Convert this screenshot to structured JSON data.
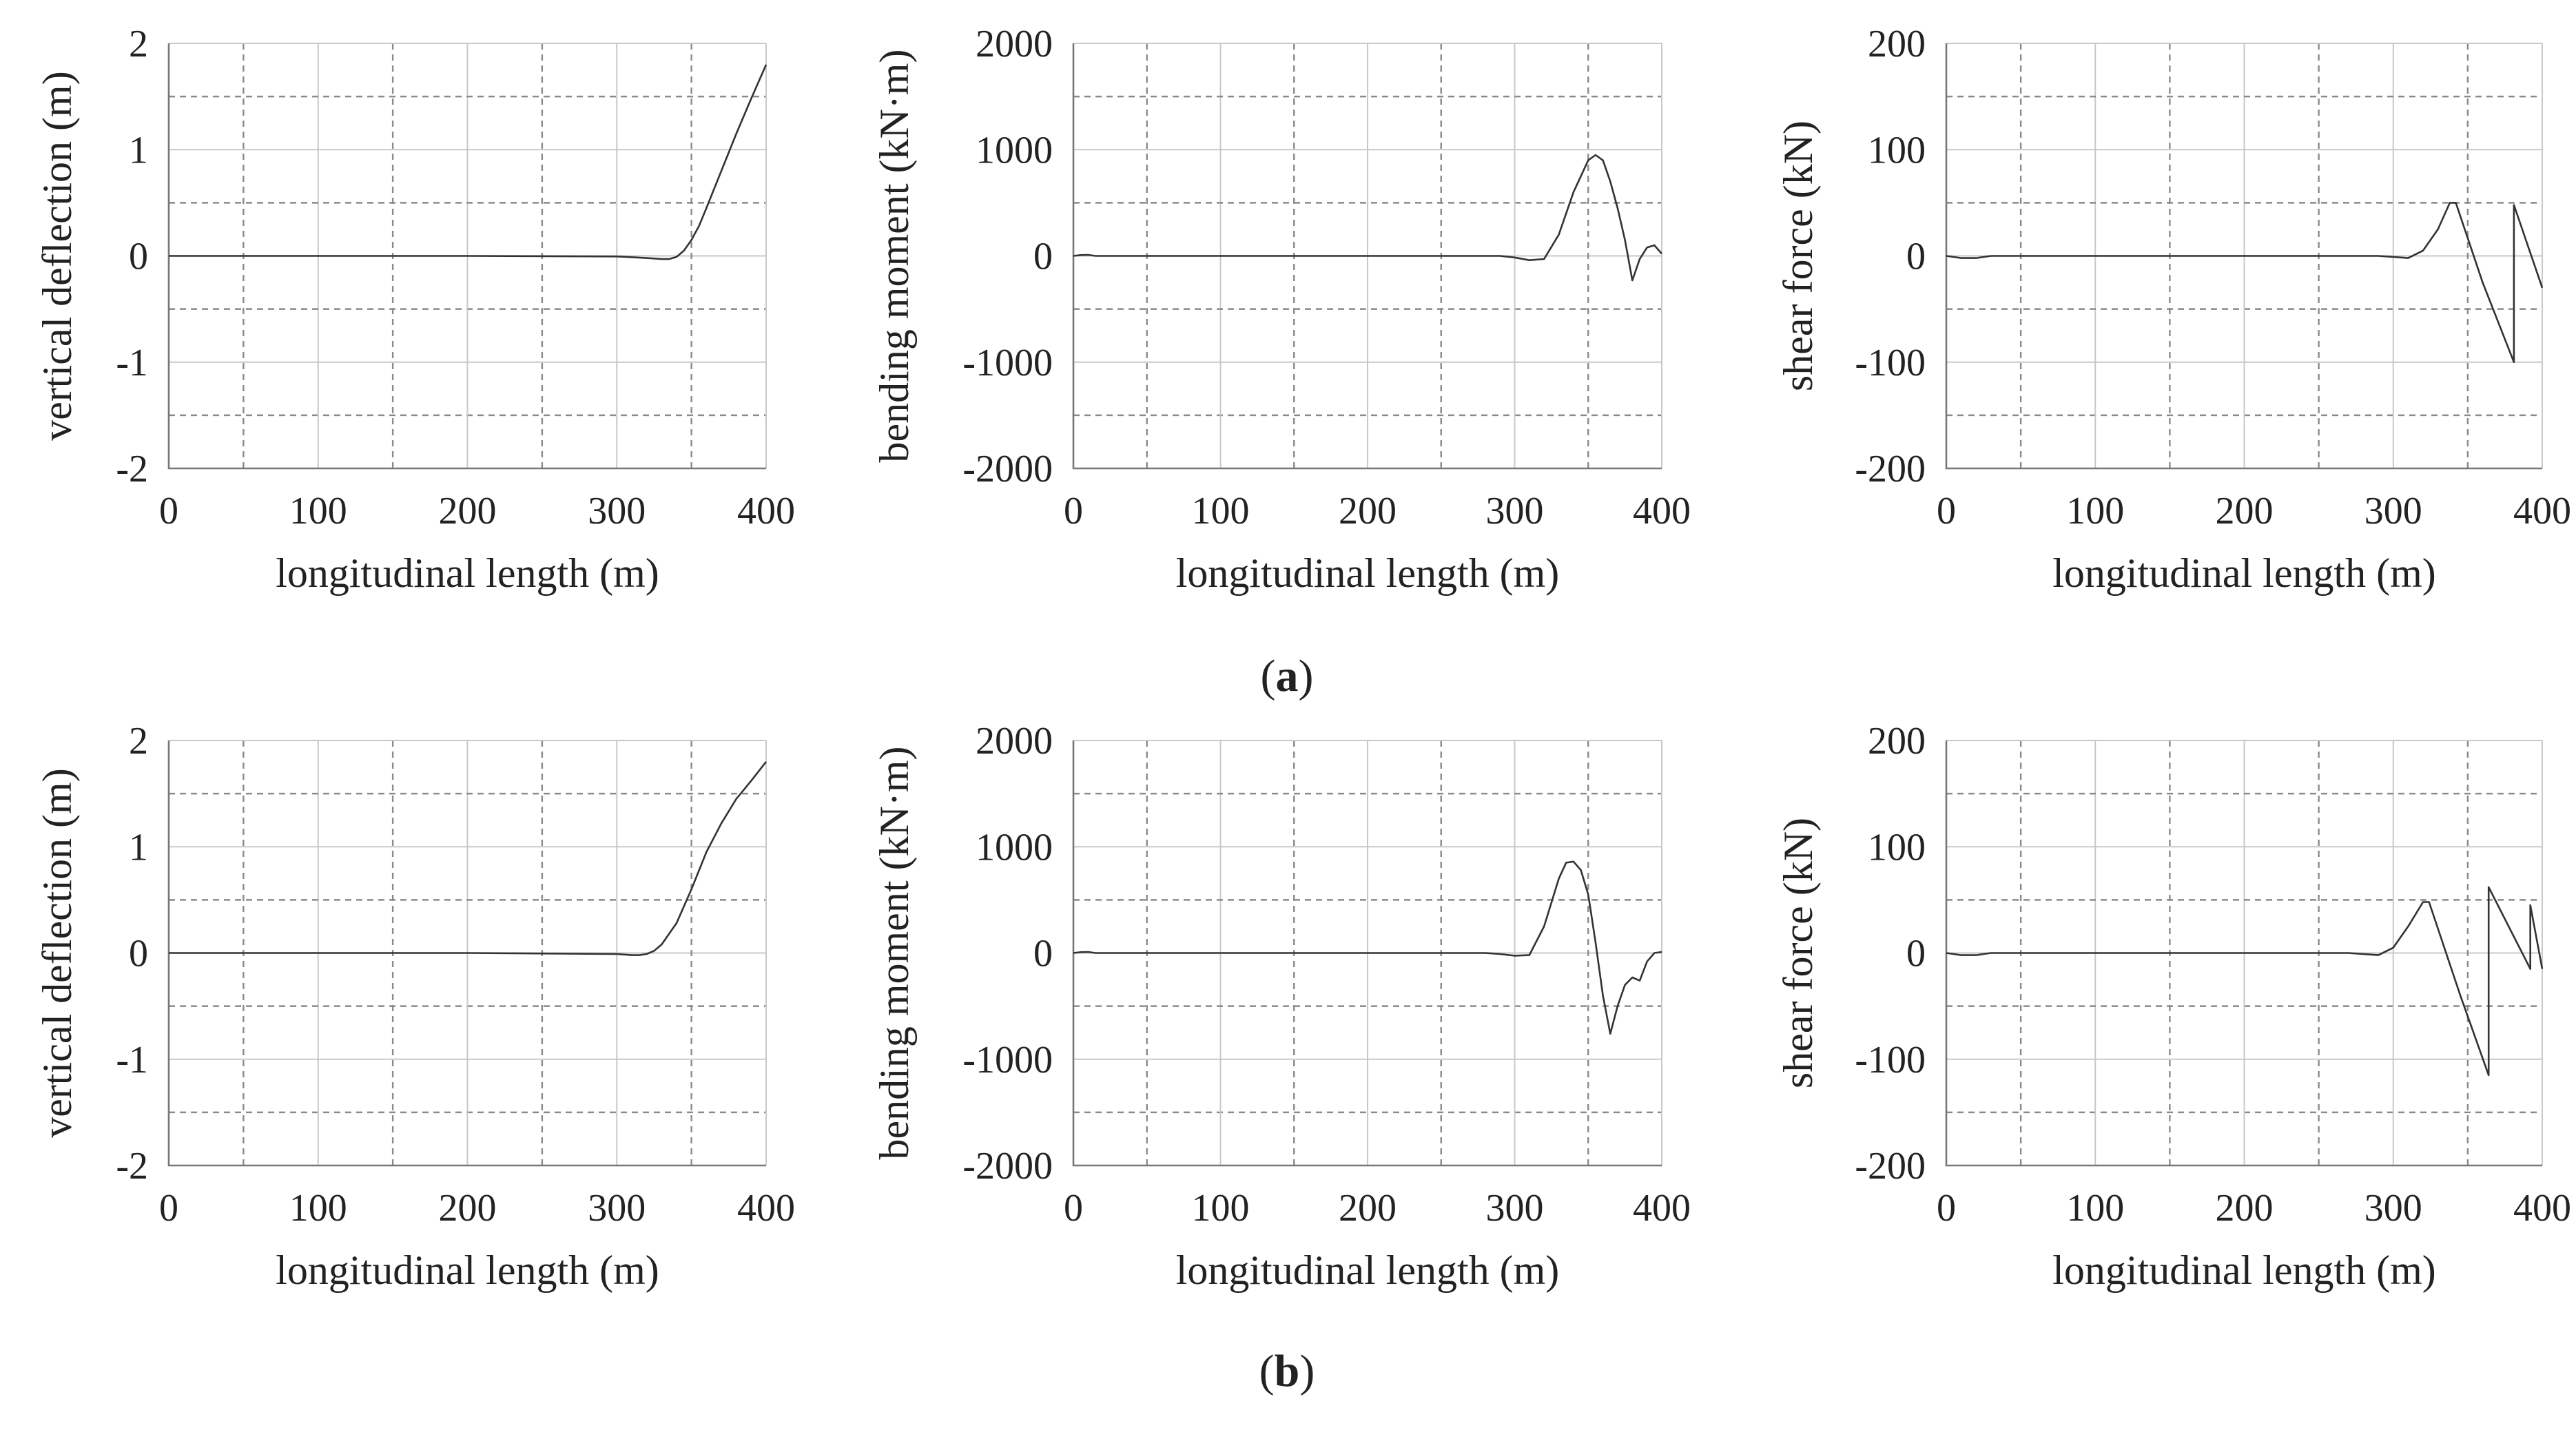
{
  "figure": {
    "panel_labels": [
      {
        "open": "(",
        "letter": "a",
        "close": ")"
      },
      {
        "open": "(",
        "letter": "b",
        "close": ")"
      }
    ]
  },
  "chart_data": [
    {
      "type": "line",
      "row": "a",
      "column": "deflection",
      "xlabel": "longitudinal length (m)",
      "ylabel": "vertical deflection (m)",
      "xlim": [
        0,
        400
      ],
      "ylim": [
        -2,
        2
      ],
      "xticks": [
        0,
        100,
        200,
        300,
        400
      ],
      "yticks": [
        -2,
        -1,
        0,
        1,
        2
      ],
      "ytick_labels": [
        "-2",
        "-1",
        "0",
        "1",
        "2"
      ],
      "grid": true,
      "x": [
        0,
        100,
        200,
        300,
        320,
        330,
        335,
        340,
        345,
        350,
        355,
        360,
        370,
        380,
        390,
        400
      ],
      "y": [
        0,
        0,
        0,
        -0.005,
        -0.02,
        -0.03,
        -0.03,
        -0.01,
        0.05,
        0.15,
        0.28,
        0.45,
        0.8,
        1.15,
        1.48,
        1.8
      ]
    },
    {
      "type": "line",
      "row": "a",
      "column": "moment",
      "xlabel": "longitudinal length (m)",
      "ylabel": "bending moment (kN·m)",
      "xlim": [
        0,
        400
      ],
      "ylim": [
        -2000,
        2000
      ],
      "xticks": [
        0,
        100,
        200,
        300,
        400
      ],
      "yticks": [
        -2000,
        -1000,
        0,
        1000,
        2000
      ],
      "ytick_labels": [
        "-2000",
        "-1000",
        "0",
        "1000",
        "2000"
      ],
      "grid": true,
      "x": [
        0,
        5,
        10,
        15,
        100,
        200,
        290,
        300,
        310,
        320,
        330,
        340,
        350,
        355,
        360,
        365,
        370,
        375,
        380,
        385,
        390,
        395,
        400
      ],
      "y": [
        0,
        8,
        10,
        0,
        0,
        0,
        0,
        -15,
        -40,
        -30,
        200,
        600,
        900,
        950,
        900,
        700,
        450,
        150,
        -230,
        -30,
        80,
        100,
        20
      ]
    },
    {
      "type": "line",
      "row": "a",
      "column": "shear",
      "xlabel": "longitudinal length (m)",
      "ylabel": "shear force (kN)",
      "xlim": [
        0,
        400
      ],
      "ylim": [
        -200,
        200
      ],
      "xticks": [
        0,
        100,
        200,
        300,
        400
      ],
      "yticks": [
        -200,
        -100,
        0,
        100,
        200
      ],
      "ytick_labels": [
        "-200",
        "-100",
        "0",
        "100",
        "200"
      ],
      "grid": true,
      "x": [
        0,
        10,
        20,
        30,
        100,
        200,
        290,
        310,
        320,
        330,
        338,
        342,
        360,
        381,
        381,
        400
      ],
      "y": [
        0,
        -2,
        -2,
        0,
        0,
        0,
        0,
        -2,
        5,
        25,
        50,
        50,
        -25,
        -100,
        48,
        -30
      ]
    },
    {
      "type": "line",
      "row": "b",
      "column": "deflection",
      "xlabel": "longitudinal length (m)",
      "ylabel": "vertical deflection (m)",
      "xlim": [
        0,
        400
      ],
      "ylim": [
        -2,
        2
      ],
      "xticks": [
        0,
        100,
        200,
        300,
        400
      ],
      "yticks": [
        -2,
        -1,
        0,
        1,
        2
      ],
      "ytick_labels": [
        "-2",
        "-1",
        "0",
        "1",
        "2"
      ],
      "grid": true,
      "x": [
        0,
        100,
        200,
        300,
        310,
        315,
        320,
        325,
        330,
        340,
        350,
        360,
        370,
        380,
        390,
        400
      ],
      "y": [
        0,
        0,
        0,
        -0.01,
        -0.02,
        -0.02,
        -0.01,
        0.02,
        0.08,
        0.28,
        0.6,
        0.95,
        1.22,
        1.45,
        1.62,
        1.8
      ]
    },
    {
      "type": "line",
      "row": "b",
      "column": "moment",
      "xlabel": "longitudinal length (m)",
      "ylabel": "bending moment (kN·m)",
      "xlim": [
        0,
        400
      ],
      "ylim": [
        -2000,
        2000
      ],
      "xticks": [
        0,
        100,
        200,
        300,
        400
      ],
      "yticks": [
        -2000,
        -1000,
        0,
        1000,
        2000
      ],
      "ytick_labels": [
        "-2000",
        "-1000",
        "0",
        "1000",
        "2000"
      ],
      "grid": true,
      "x": [
        0,
        5,
        10,
        15,
        100,
        200,
        280,
        290,
        300,
        310,
        320,
        330,
        335,
        340,
        345,
        350,
        355,
        360,
        365,
        370,
        375,
        380,
        385,
        390,
        395,
        400
      ],
      "y": [
        0,
        8,
        10,
        0,
        0,
        0,
        0,
        -10,
        -25,
        -20,
        250,
        700,
        850,
        860,
        780,
        550,
        100,
        -400,
        -760,
        -500,
        -300,
        -230,
        -260,
        -80,
        0,
        10
      ]
    },
    {
      "type": "line",
      "row": "b",
      "column": "shear",
      "xlabel": "longitudinal length (m)",
      "ylabel": "shear force (kN)",
      "xlim": [
        0,
        400
      ],
      "ylim": [
        -200,
        200
      ],
      "xticks": [
        0,
        100,
        200,
        300,
        400
      ],
      "yticks": [
        -200,
        -100,
        0,
        100,
        200
      ],
      "ytick_labels": [
        "-200",
        "-100",
        "0",
        "100",
        "200"
      ],
      "grid": true,
      "x": [
        0,
        10,
        20,
        30,
        100,
        200,
        270,
        290,
        300,
        310,
        320,
        324,
        345,
        364,
        364,
        392,
        392,
        400
      ],
      "y": [
        0,
        -2,
        -2,
        0,
        0,
        0,
        0,
        -2,
        5,
        25,
        48,
        48,
        -40,
        -115,
        62,
        -15,
        45,
        -15
      ]
    }
  ]
}
